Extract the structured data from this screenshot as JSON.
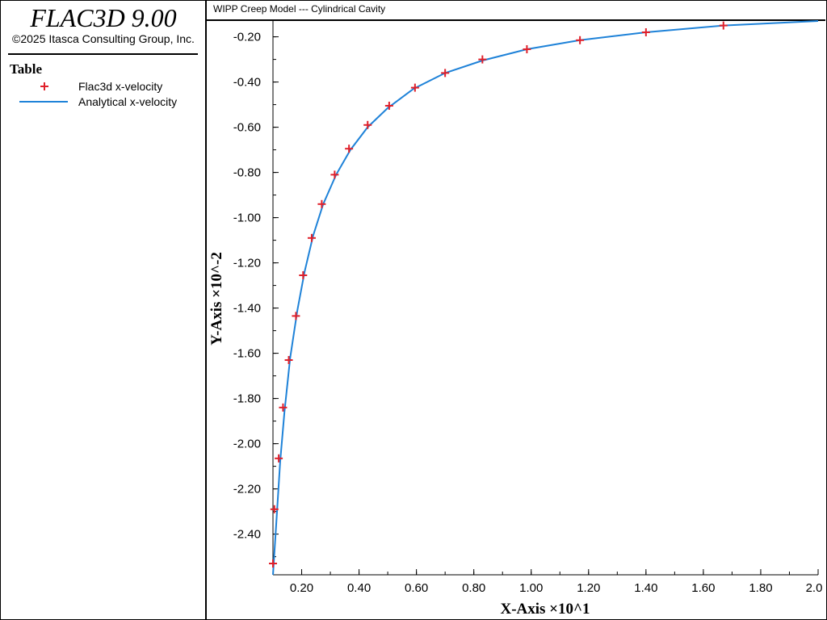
{
  "app": {
    "title": "FLAC3D 9.00",
    "copyright": "©2025 Itasca Consulting Group, Inc."
  },
  "legend": {
    "title": "Table",
    "items": [
      {
        "label": "Flac3d x-velocity",
        "symbol": "plus",
        "color": "#e0202a"
      },
      {
        "label": "Analytical x-velocity",
        "symbol": "line",
        "color": "#1e82d8"
      }
    ]
  },
  "plot": {
    "title": "WIPP Creep Model --- Cylindrical Cavity"
  },
  "chart_data": {
    "type": "scatter",
    "xlabel": "X-Axis ×10^1",
    "ylabel": "Y-Axis ×10^-2",
    "xlim": [
      0.1,
      2.0
    ],
    "ylim": [
      -2.58,
      -0.13
    ],
    "x_ticks": [
      "0.20",
      "0.40",
      "0.60",
      "0.80",
      "1.00",
      "1.20",
      "1.40",
      "1.60",
      "1.80",
      "2.0"
    ],
    "y_ticks": [
      "-0.20",
      "-0.40",
      "-0.60",
      "-0.80",
      "-1.00",
      "-1.20",
      "-1.40",
      "-1.60",
      "-1.80",
      "-2.00",
      "-2.20",
      "-2.40"
    ],
    "grid": false,
    "series": [
      {
        "name": "Flac3d x-velocity",
        "style": "markers",
        "color": "#e0202a",
        "x": [
          0.1,
          0.105,
          0.12,
          0.135,
          0.155,
          0.18,
          0.205,
          0.235,
          0.27,
          0.315,
          0.365,
          0.43,
          0.505,
          0.595,
          0.7,
          0.83,
          0.985,
          1.17,
          1.4,
          1.67
        ],
        "y": [
          -2.53,
          -2.29,
          -2.065,
          -1.84,
          -1.63,
          -1.435,
          -1.255,
          -1.09,
          -0.94,
          -0.81,
          -0.695,
          -0.59,
          -0.505,
          -0.425,
          -0.36,
          -0.3,
          -0.255,
          -0.215,
          -0.18,
          -0.15
        ]
      },
      {
        "name": "Analytical x-velocity",
        "style": "line",
        "color": "#1e82d8",
        "x": [
          0.1,
          0.11,
          0.125,
          0.14,
          0.16,
          0.185,
          0.21,
          0.24,
          0.275,
          0.32,
          0.37,
          0.43,
          0.5,
          0.59,
          0.7,
          0.83,
          0.985,
          1.17,
          1.4,
          1.67,
          2.0
        ],
        "y": [
          -2.58,
          -2.38,
          -2.08,
          -1.86,
          -1.62,
          -1.41,
          -1.24,
          -1.08,
          -0.94,
          -0.81,
          -0.7,
          -0.6,
          -0.515,
          -0.43,
          -0.36,
          -0.305,
          -0.255,
          -0.215,
          -0.18,
          -0.15,
          -0.13
        ]
      }
    ]
  }
}
